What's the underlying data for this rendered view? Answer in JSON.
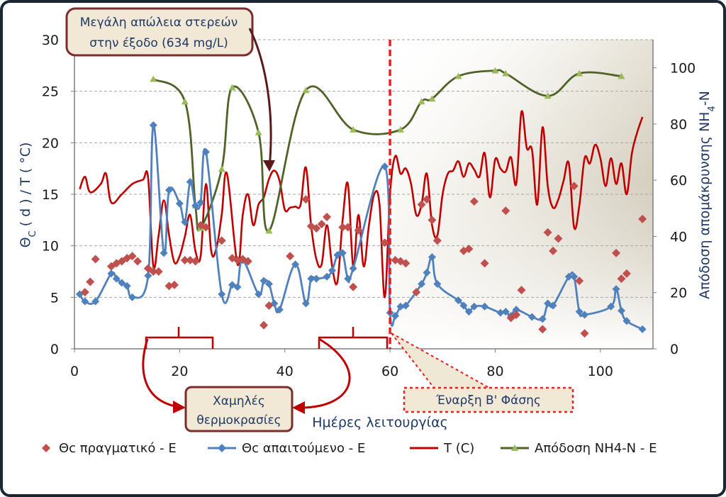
{
  "chart_data": {
    "type": "line",
    "xlabel": "Ημέρες λειτουργίας",
    "ylabel_left": "Θ_C ( d ) / T  ( °C)",
    "ylabel_right": "Απόδοση απομάκρυνσης  NH4-N",
    "xlim": [
      0,
      110
    ],
    "ylim_left": [
      0,
      30
    ],
    "ylim_right": [
      0,
      110
    ],
    "x_ticks": [
      0,
      20,
      40,
      60,
      80,
      100
    ],
    "y_left_ticks": [
      0,
      5,
      10,
      15,
      20,
      25,
      30
    ],
    "y_right_ticks": [
      0,
      20,
      40,
      60,
      80,
      100
    ],
    "grid": true,
    "legend_position": "bottom",
    "series": [
      {
        "name": "Θc πραγματικό - E",
        "kind": "scatter",
        "marker": "diamond",
        "color": "#c0504d",
        "axis": "left",
        "x": [
          2,
          3,
          4,
          7,
          8,
          9,
          10,
          11,
          12,
          14,
          15,
          16,
          18,
          19,
          21,
          22,
          23,
          24,
          25,
          28,
          30,
          31,
          32,
          33,
          36,
          37,
          41,
          44,
          45,
          46,
          47,
          48,
          51,
          52,
          53,
          54,
          59,
          61,
          62,
          63,
          65,
          66,
          67,
          68,
          69,
          74,
          75,
          76,
          78,
          82,
          83,
          84,
          85,
          89,
          90,
          91,
          92,
          95,
          96,
          97,
          103,
          104,
          105,
          108
        ],
        "y": [
          5.5,
          6.5,
          8.7,
          8,
          8.3,
          8.5,
          8.8,
          9,
          8.5,
          7.8,
          7.5,
          7.5,
          6.1,
          6.2,
          8.6,
          8.6,
          8.5,
          12,
          11.8,
          10.5,
          8.8,
          8.6,
          8.7,
          8.5,
          2.3,
          4.2,
          9,
          14.5,
          11.9,
          11.7,
          12.1,
          12.8,
          11.8,
          11.8,
          6,
          11.5,
          10.3,
          8.6,
          8.5,
          8.3,
          5.5,
          14,
          14.5,
          12.5,
          10.5,
          9.5,
          9.7,
          14.3,
          8.3,
          13.4,
          3,
          3.3,
          5.7,
          1.9,
          11.3,
          9.5,
          10.7,
          15.8,
          6.6,
          1.5,
          9.3,
          6.8,
          7.3,
          12.6
        ]
      },
      {
        "name": "Θc απαιτούμενο - E",
        "kind": "line",
        "marker": "diamond",
        "color": "#4f81bd",
        "axis": "left",
        "x": [
          1,
          2,
          4,
          7,
          8,
          9,
          10,
          11,
          14,
          15,
          17,
          18,
          20,
          21,
          22,
          23,
          24,
          25,
          28,
          30,
          31,
          32,
          35,
          36,
          37,
          38,
          39,
          42,
          44,
          45,
          46,
          48,
          49,
          50,
          51,
          52,
          53,
          59,
          60,
          61,
          62,
          63,
          66,
          67,
          68,
          69,
          73,
          74,
          75,
          76,
          78,
          81,
          82,
          83,
          84,
          87,
          89,
          90,
          91,
          94,
          95,
          96,
          97,
          102,
          103,
          104,
          105,
          108
        ],
        "y": [
          5.3,
          4.6,
          4.6,
          7.3,
          6.8,
          6.4,
          6.1,
          5,
          7.1,
          21.7,
          9.3,
          15.4,
          14.1,
          12.3,
          16.2,
          13.9,
          14.2,
          19.1,
          5.3,
          6.2,
          6,
          8.6,
          5.3,
          6.6,
          6.3,
          4.4,
          3.8,
          8.2,
          4.4,
          6.8,
          6.8,
          7,
          7.6,
          9.1,
          9.3,
          6.8,
          7.8,
          17.7,
          3.5,
          3.2,
          4.1,
          4.2,
          6.3,
          7.4,
          8.9,
          6.3,
          4.7,
          4.2,
          3.6,
          4.1,
          4.1,
          3.5,
          3.6,
          3.2,
          3.8,
          3.1,
          2.9,
          4.4,
          4.2,
          7,
          7,
          3.6,
          3.3,
          4.1,
          5.8,
          3.7,
          2.7,
          1.9
        ]
      },
      {
        "name": "T (C)",
        "kind": "line",
        "marker": "none",
        "color": "#c00000",
        "axis": "left",
        "x": [
          1,
          2,
          3,
          5,
          6,
          7,
          9,
          11,
          13,
          14,
          15,
          16,
          17,
          18,
          19,
          20,
          21,
          22,
          23,
          24,
          25,
          26,
          27,
          28,
          29,
          31,
          32,
          33,
          34,
          35,
          36,
          37,
          38,
          39,
          40,
          41,
          42,
          43,
          44,
          45,
          46,
          47,
          48,
          49,
          50,
          51,
          52,
          53,
          54,
          55,
          56,
          57,
          58,
          59,
          60,
          61,
          62,
          63,
          64,
          65,
          66,
          67,
          68,
          69,
          70,
          71,
          72,
          73,
          74,
          75,
          76,
          77,
          78,
          79,
          80,
          81,
          82,
          83,
          84,
          85,
          86,
          87,
          88,
          89,
          90,
          91,
          92,
          93,
          94,
          95,
          96,
          97,
          98,
          99,
          100,
          101,
          102,
          103,
          104,
          105,
          106,
          107,
          108
        ],
        "y": [
          15.5,
          16.7,
          15.2,
          16,
          17,
          14.2,
          15,
          16,
          16.4,
          16.6,
          8,
          11,
          14.4,
          11,
          8.4,
          9,
          10.9,
          13,
          9.5,
          9,
          16,
          9.5,
          9.8,
          13,
          17,
          8.2,
          13,
          15,
          12,
          14,
          14.7,
          16.5,
          17.3,
          16.3,
          13.5,
          13.7,
          13.8,
          14,
          17.6,
          12,
          8.7,
          8.2,
          12,
          8,
          6.5,
          12.5,
          16,
          8,
          13,
          8,
          12,
          15,
          14,
          5,
          15,
          18.7,
          17,
          17.5,
          16,
          13,
          14,
          17,
          12,
          11,
          15,
          17,
          17.3,
          18.2,
          16.7,
          18,
          17.4,
          16.7,
          19,
          14.7,
          18.4,
          17.5,
          17.2,
          18.6,
          16,
          23,
          19.5,
          19.3,
          14,
          21.5,
          15.8,
          13.7,
          14.5,
          16.3,
          18,
          11.8,
          13.9,
          18.5,
          18,
          19.8,
          18.5,
          15.8,
          18.5,
          16,
          18,
          15,
          19,
          21,
          22.5
        ]
      },
      {
        "name": "Απόδοση NH4-N - E",
        "kind": "line",
        "marker": "triangle",
        "color": "#4f6228",
        "axis": "right",
        "x": [
          15,
          21,
          23,
          24,
          28,
          30,
          35,
          37,
          44,
          53,
          62,
          66,
          68,
          73,
          80,
          82,
          90,
          96,
          104
        ],
        "y": [
          96,
          88,
          51,
          43,
          64,
          93,
          77,
          42,
          92,
          78,
          78,
          88,
          89,
          97,
          99,
          98,
          90,
          98,
          97
        ]
      }
    ],
    "annotations": [
      "Μεγάλη απώλεια στερεών στην έξοδο (634 mg/L)",
      "Χαμηλές θερμοκρασίες",
      "Έναρξη Β' Φάσης"
    ]
  },
  "colors": {
    "frame": "#1a2733",
    "annotation_box_border": "#7b2c2c",
    "annotation_box_fill": "#f1e9d6",
    "phase_line": "#e8211f",
    "grid": "#a6a6a6"
  }
}
